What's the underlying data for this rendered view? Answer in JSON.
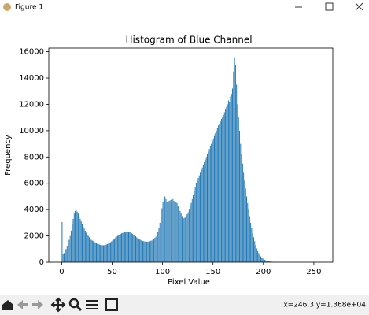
{
  "window": {
    "title": "Figure 1",
    "status": "x=246.3 y=1.368e+04"
  },
  "chart_data": {
    "type": "histogram",
    "title": "Histogram of Blue Channel",
    "x_label": "Pixel Value",
    "y_label": "Frequency",
    "color": "#1f77b4",
    "bins": [
      0,
      1,
      2,
      3,
      4,
      5,
      6,
      7,
      8,
      9,
      10,
      11,
      12,
      13,
      14,
      15,
      16,
      17,
      18,
      19,
      20,
      21,
      22,
      23,
      24,
      25,
      26,
      27,
      28,
      29,
      30,
      31,
      32,
      33,
      34,
      35,
      36,
      37,
      38,
      39,
      40,
      41,
      42,
      43,
      44,
      45,
      46,
      47,
      48,
      49,
      50,
      51,
      52,
      53,
      54,
      55,
      56,
      57,
      58,
      59,
      60,
      61,
      62,
      63,
      64,
      65,
      66,
      67,
      68,
      69,
      70,
      71,
      72,
      73,
      74,
      75,
      76,
      77,
      78,
      79,
      80,
      81,
      82,
      83,
      84,
      85,
      86,
      87,
      88,
      89,
      90,
      91,
      92,
      93,
      94,
      95,
      96,
      97,
      98,
      99,
      100,
      101,
      102,
      103,
      104,
      105,
      106,
      107,
      108,
      109,
      110,
      111,
      112,
      113,
      114,
      115,
      116,
      117,
      118,
      119,
      120,
      121,
      122,
      123,
      124,
      125,
      126,
      127,
      128,
      129,
      130,
      131,
      132,
      133,
      134,
      135,
      136,
      137,
      138,
      139,
      140,
      141,
      142,
      143,
      144,
      145,
      146,
      147,
      148,
      149,
      150,
      151,
      152,
      153,
      154,
      155,
      156,
      157,
      158,
      159,
      160,
      161,
      162,
      163,
      164,
      165,
      166,
      167,
      168,
      169,
      170,
      171,
      172,
      173,
      174,
      175,
      176,
      177,
      178,
      179,
      180,
      181,
      182,
      183,
      184,
      185,
      186,
      187,
      188,
      189,
      190,
      191,
      192,
      193,
      194,
      195,
      196,
      197,
      198,
      199,
      200,
      201,
      202,
      203,
      204,
      205,
      206,
      207,
      208,
      209,
      210,
      211,
      212,
      213,
      214,
      215,
      216,
      217,
      218,
      219,
      220,
      221,
      222,
      223,
      224,
      225,
      226,
      227,
      228,
      229,
      230,
      231,
      232,
      233,
      234,
      235,
      236,
      237,
      238,
      239,
      240,
      241,
      242,
      243,
      244,
      245,
      246,
      247,
      248,
      249,
      250,
      251,
      252,
      253,
      254,
      255,
      256
    ],
    "values": [
      3050,
      600,
      700,
      900,
      1000,
      1200,
      1400,
      1700,
      2000,
      2400,
      2900,
      3300,
      3700,
      3900,
      3950,
      3850,
      3700,
      3500,
      3300,
      3100,
      2900,
      2700,
      2550,
      2400,
      2250,
      2100,
      2000,
      1900,
      1800,
      1700,
      1650,
      1600,
      1550,
      1500,
      1450,
      1400,
      1380,
      1350,
      1320,
      1300,
      1300,
      1290,
      1300,
      1320,
      1350,
      1380,
      1420,
      1470,
      1520,
      1580,
      1650,
      1720,
      1800,
      1880,
      1950,
      2000,
      2050,
      2100,
      2150,
      2200,
      2230,
      2250,
      2270,
      2280,
      2290,
      2300,
      2290,
      2280,
      2250,
      2200,
      2150,
      2100,
      2030,
      1970,
      1900,
      1840,
      1780,
      1730,
      1690,
      1650,
      1620,
      1600,
      1580,
      1570,
      1560,
      1560,
      1570,
      1590,
      1620,
      1660,
      1710,
      1770,
      1850,
      1950,
      2100,
      2300,
      2600,
      3000,
      3500,
      4100,
      4600,
      4900,
      5000,
      4800,
      4600,
      4500,
      4650,
      4700,
      4750,
      4700,
      4800,
      4650,
      4700,
      4600,
      4500,
      4300,
      4100,
      3900,
      3700,
      3500,
      3300,
      3350,
      3400,
      3500,
      3650,
      3800,
      4000,
      4250,
      4500,
      4800,
      5100,
      5400,
      5700,
      6000,
      6200,
      6400,
      6600,
      6800,
      7000,
      7200,
      7400,
      7600,
      7800,
      8000,
      8200,
      8400,
      8600,
      8800,
      9000,
      9200,
      9400,
      9600,
      9800,
      10000,
      10200,
      10400,
      10500,
      10700,
      10900,
      11000,
      11200,
      11400,
      11600,
      11800,
      12000,
      12300,
      12200,
      12600,
      12800,
      13200,
      14500,
      15500,
      15000,
      13500,
      12000,
      11000,
      10000,
      9000,
      8200,
      7500,
      6800,
      6200,
      5600,
      5000,
      4500,
      4000,
      3500,
      3000,
      2600,
      2200,
      1900,
      1600,
      1300,
      1050,
      850,
      700,
      560,
      450,
      360,
      290,
      230,
      180,
      140,
      110,
      90,
      70,
      55,
      45,
      35,
      28,
      22,
      17,
      13,
      10,
      8,
      6,
      5,
      4,
      3,
      2,
      2,
      1,
      1,
      1,
      1,
      0,
      0,
      0,
      0,
      0,
      0,
      0,
      0,
      0,
      0,
      0,
      0,
      0,
      0,
      0,
      0,
      0,
      0,
      0,
      0,
      0,
      0,
      0,
      0,
      0,
      0,
      0,
      0,
      0,
      0,
      0
    ],
    "xlim": [
      -12.8,
      268.8
    ],
    "xticks": [
      0,
      50,
      100,
      150,
      200,
      250
    ],
    "ylim": [
      0,
      16275
    ],
    "yticks": [
      0,
      2000,
      4000,
      6000,
      8000,
      10000,
      12000,
      14000,
      16000
    ]
  }
}
